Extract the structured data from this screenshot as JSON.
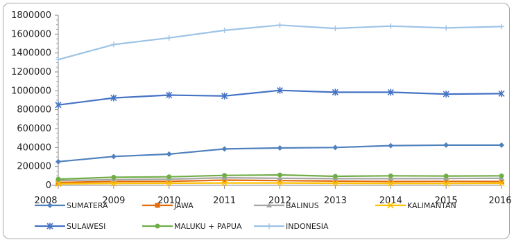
{
  "chart_data": {
    "type": "line",
    "title": "",
    "xlabel": "",
    "ylabel": "",
    "x": [
      "2008",
      "2009",
      "2010",
      "2011",
      "2012",
      "2013",
      "2014",
      "2015",
      "2016"
    ],
    "ylim": [
      0,
      1800000
    ],
    "yticks": [
      "0",
      "200000",
      "400000",
      "600000",
      "800000",
      "1000000",
      "1200000",
      "1400000",
      "1600000",
      "1800000"
    ],
    "grid": false,
    "legend_position": "bottom",
    "series": [
      {
        "name": "SUMATERA",
        "color": "#4f81bd",
        "marker": "diamond",
        "values": [
          250000,
          305000,
          330000,
          385000,
          395000,
          400000,
          420000,
          425000,
          425000
        ]
      },
      {
        "name": "JAWA",
        "color": "#e46c0a",
        "marker": "square",
        "values": [
          30000,
          40000,
          42000,
          55000,
          50000,
          45000,
          40000,
          42000,
          40000
        ]
      },
      {
        "name": "BALINUS",
        "color": "#a5a5a5",
        "marker": "triangle",
        "values": [
          50000,
          60000,
          65000,
          80000,
          75000,
          70000,
          70000,
          72000,
          75000
        ]
      },
      {
        "name": "KALIMANTAN",
        "color": "#ffc000",
        "marker": "x",
        "values": [
          15000,
          20000,
          22000,
          25000,
          25000,
          22000,
          20000,
          20000,
          22000
        ]
      },
      {
        "name": "SULAWESI",
        "color": "#4472c4",
        "marker": "star",
        "values": [
          850000,
          925000,
          955000,
          945000,
          1005000,
          985000,
          985000,
          965000,
          970000
        ]
      },
      {
        "name": "MALUKU + PAPUA",
        "color": "#70ad47",
        "marker": "circle",
        "values": [
          65000,
          85000,
          90000,
          105000,
          110000,
          95000,
          100000,
          98000,
          100000
        ]
      },
      {
        "name": "INDONESIA",
        "color": "#9dc3e6",
        "marker": "plus",
        "values": [
          1330000,
          1490000,
          1560000,
          1640000,
          1695000,
          1660000,
          1685000,
          1665000,
          1680000
        ]
      }
    ]
  }
}
